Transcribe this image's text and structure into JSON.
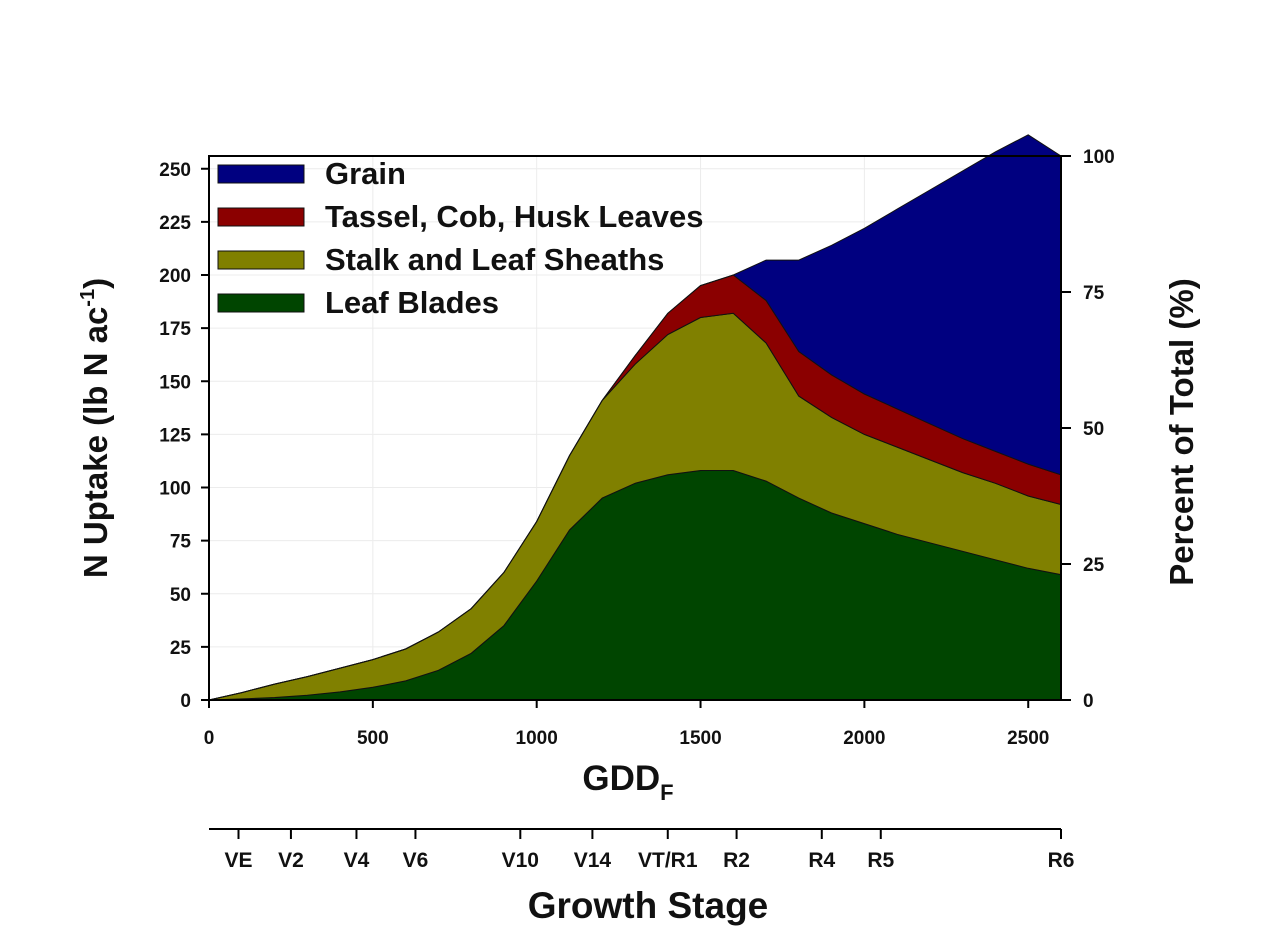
{
  "chart_data": {
    "type": "area",
    "stacked": true,
    "xlabel": "GDD",
    "xlabel_subscript": "F",
    "ylabel": "N Uptake (lb N ac",
    "ylabel_superscript": "-1",
    "ylabel_close": ")",
    "y2label": "Percent of Total (%)",
    "xlim": [
      0,
      2600
    ],
    "ylim": [
      0,
      256
    ],
    "y2lim": [
      0,
      100
    ],
    "x_ticks": [
      0,
      500,
      1000,
      1500,
      2000,
      2500
    ],
    "y_ticks": [
      0,
      25,
      50,
      75,
      100,
      125,
      150,
      175,
      200,
      225,
      250
    ],
    "y2_ticks": [
      0,
      25,
      50,
      75,
      100
    ],
    "grid": true,
    "legend_position": "top-left",
    "x": [
      0,
      100,
      200,
      300,
      400,
      500,
      600,
      700,
      800,
      900,
      1000,
      1100,
      1200,
      1300,
      1400,
      1500,
      1600,
      1700,
      1800,
      1900,
      2000,
      2100,
      2200,
      2300,
      2400,
      2500,
      2600
    ],
    "series": [
      {
        "name": "Leaf Blades",
        "color": "#004500",
        "values": [
          0,
          0.5,
          1.2,
          2.2,
          3.8,
          6,
          9,
          14,
          22,
          35,
          56,
          80,
          95,
          102,
          106,
          108,
          108,
          103,
          95,
          88,
          83,
          78,
          74,
          70,
          66,
          62,
          59
        ]
      },
      {
        "name": "Stalk and Leaf Sheaths",
        "color": "#808000",
        "values": [
          0,
          3,
          6.3,
          8.8,
          11.2,
          13,
          15,
          18,
          21,
          25,
          28,
          35,
          46,
          56,
          66,
          72,
          74,
          65,
          48,
          45,
          42,
          41,
          39,
          37,
          36,
          34,
          33
        ]
      },
      {
        "name": "Tassel, Cob, Husk Leaves",
        "color": "#8b0000",
        "values": [
          0,
          0,
          0,
          0,
          0,
          0,
          0,
          0,
          0,
          0,
          0,
          0,
          0,
          4,
          10,
          15,
          18,
          20,
          21,
          20,
          19,
          18,
          17,
          16,
          15,
          15,
          14
        ]
      },
      {
        "name": "Grain",
        "color": "#000080",
        "values": [
          0,
          0,
          0,
          0,
          0,
          0,
          0,
          0,
          0,
          0,
          0,
          0,
          0,
          0,
          0,
          0,
          0,
          19,
          43,
          61,
          78,
          94,
          110,
          126,
          141,
          155,
          150
        ]
      }
    ],
    "legend": [
      "Grain",
      "Tassel, Cob, Husk Leaves",
      "Stalk and Leaf Sheaths",
      "Leaf Blades"
    ],
    "growth_stage": {
      "title": "Growth Stage",
      "stages": [
        {
          "label": "VE",
          "gdd": 90
        },
        {
          "label": "V2",
          "gdd": 250
        },
        {
          "label": "V4",
          "gdd": 450
        },
        {
          "label": "V6",
          "gdd": 630
        },
        {
          "label": "V10",
          "gdd": 950
        },
        {
          "label": "V14",
          "gdd": 1170
        },
        {
          "label": "VT/R1",
          "gdd": 1400
        },
        {
          "label": "R2",
          "gdd": 1610
        },
        {
          "label": "R4",
          "gdd": 1870
        },
        {
          "label": "R5",
          "gdd": 2050
        },
        {
          "label": "R6",
          "gdd": 2600
        }
      ]
    }
  }
}
